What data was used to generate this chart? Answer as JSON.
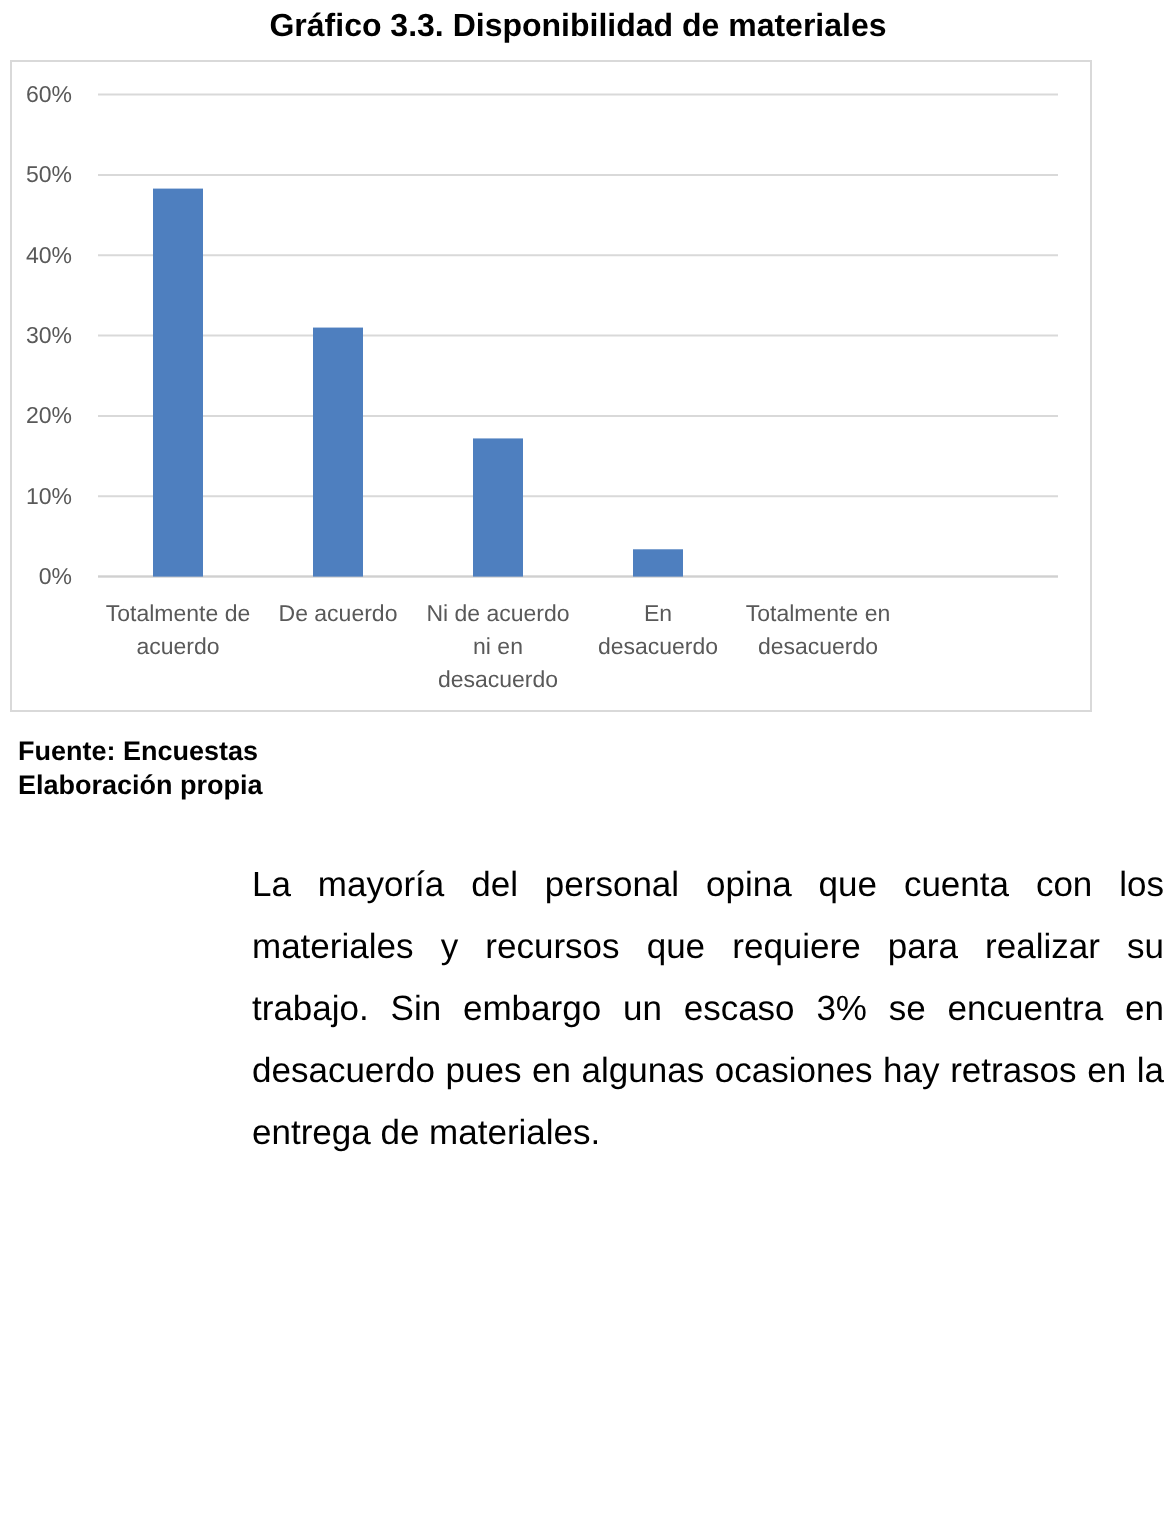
{
  "chart_data": {
    "type": "bar",
    "title": "Gráfico 3.3. Disponibilidad de materiales",
    "categories": [
      "Totalmente de acuerdo",
      "De acuerdo",
      "Ni de acuerdo ni en desacuerdo",
      "En desacuerdo",
      "Totalmente en desacuerdo",
      null
    ],
    "values": [
      48.3,
      31.0,
      17.2,
      3.4,
      0,
      null
    ],
    "color": "#4e7fbf",
    "ylim": [
      0,
      60
    ],
    "yticks": [
      {
        "value": 0,
        "label": "0%"
      },
      {
        "value": 10,
        "label": "10%"
      },
      {
        "value": 20,
        "label": "20%"
      },
      {
        "value": 30,
        "label": "30%"
      },
      {
        "value": 40,
        "label": "40%"
      },
      {
        "value": 50,
        "label": "50%"
      },
      {
        "value": 60,
        "label": "60%"
      }
    ],
    "grid": "y",
    "annotations": [
      "Fuente: Encuestas",
      "Elaboración propia",
      "La mayoría del personal opina que cuenta con los materiales y recursos que requiere para realizar su trabajo. Sin embargo un escaso 3% se encuentra en desacuerdo pues en algunas ocasiones hay retrasos en la entrega de materiales."
    ]
  }
}
